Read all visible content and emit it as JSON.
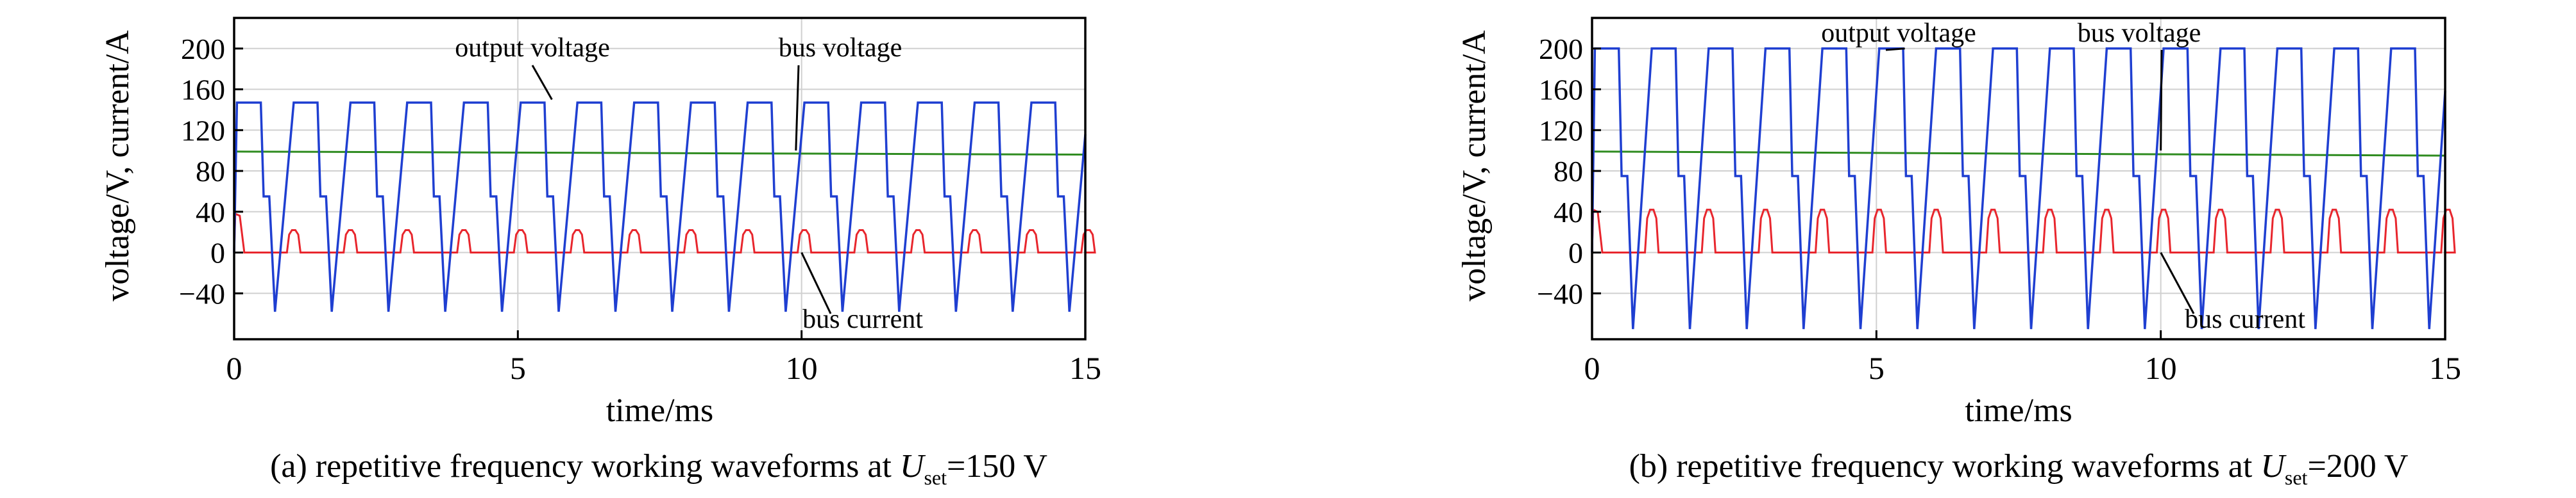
{
  "figure": {
    "panels": [
      {
        "caption_prefix": "(a) repetitive frequency working waveforms at ",
        "caption_symbol": "U",
        "caption_subscript": "set",
        "caption_suffix": "=150 V"
      },
      {
        "caption_prefix": "(b) repetitive frequency working waveforms at ",
        "caption_symbol": "U",
        "caption_subscript": "set",
        "caption_suffix": "=200 V"
      }
    ]
  },
  "colors": {
    "output_voltage": "#1f3fd1",
    "bus_voltage": "#2e8b1f",
    "bus_current": "#e8262d",
    "grid": "#d0d0d0",
    "axis": "#000000"
  },
  "chart_data": [
    {
      "type": "line",
      "xlabel": "time/ms",
      "ylabel": "voltage/V, current/A",
      "xlim": [
        0,
        15
      ],
      "ylim": [
        -85,
        230
      ],
      "xticks": [
        0,
        5,
        10,
        15
      ],
      "yticks": [
        -40,
        0,
        40,
        80,
        120,
        160,
        200
      ],
      "grid": true,
      "waveform": {
        "period_ms": 1.0,
        "first_rise_ms": 0.05,
        "positive_level": 147,
        "mid_level": 55,
        "negative_peak": -58,
        "current_start_peak": 38,
        "current_pulse_peak": 22
      },
      "series": [
        {
          "name": "output voltage",
          "color": "#1f3fd1",
          "description_values": [
            147,
            55,
            -58,
            0
          ]
        },
        {
          "name": "bus voltage",
          "color": "#2e8b1f",
          "values": [
            99,
            96
          ]
        },
        {
          "name": "bus current",
          "color": "#e8262d",
          "values": [
            38,
            22,
            0
          ]
        }
      ],
      "annotations": [
        {
          "text": "output voltage",
          "target_x": 5.6,
          "target_y": 150
        },
        {
          "text": "bus voltage",
          "target_x": 9.9,
          "target_y": 100
        },
        {
          "text": "bus current",
          "target_x": 10.0,
          "target_y": 0
        }
      ]
    },
    {
      "type": "line",
      "xlabel": "time/ms",
      "ylabel": "voltage/V, current/A",
      "xlim": [
        0,
        15
      ],
      "ylim": [
        -85,
        230
      ],
      "xticks": [
        0,
        5,
        10,
        15
      ],
      "yticks": [
        -40,
        0,
        40,
        80,
        120,
        160,
        200
      ],
      "grid": true,
      "waveform": {
        "period_ms": 1.0,
        "first_rise_ms": 0.05,
        "positive_level": 200,
        "mid_level": 75,
        "negative_peak": -75,
        "current_start_peak": 42,
        "current_pulse_peak": 42
      },
      "series": [
        {
          "name": "output voltage",
          "color": "#1f3fd1",
          "description_values": [
            200,
            75,
            -75,
            0
          ]
        },
        {
          "name": "bus voltage",
          "color": "#2e8b1f",
          "values": [
            99,
            95
          ]
        },
        {
          "name": "bus current",
          "color": "#e8262d",
          "values": [
            42,
            42,
            0
          ]
        }
      ],
      "annotations": [
        {
          "text": "output voltage",
          "target_x": 5.5,
          "target_y": 200
        },
        {
          "text": "bus voltage",
          "target_x": 10.0,
          "target_y": 100
        },
        {
          "text": "bus current",
          "target_x": 10.0,
          "target_y": 0
        }
      ]
    }
  ]
}
